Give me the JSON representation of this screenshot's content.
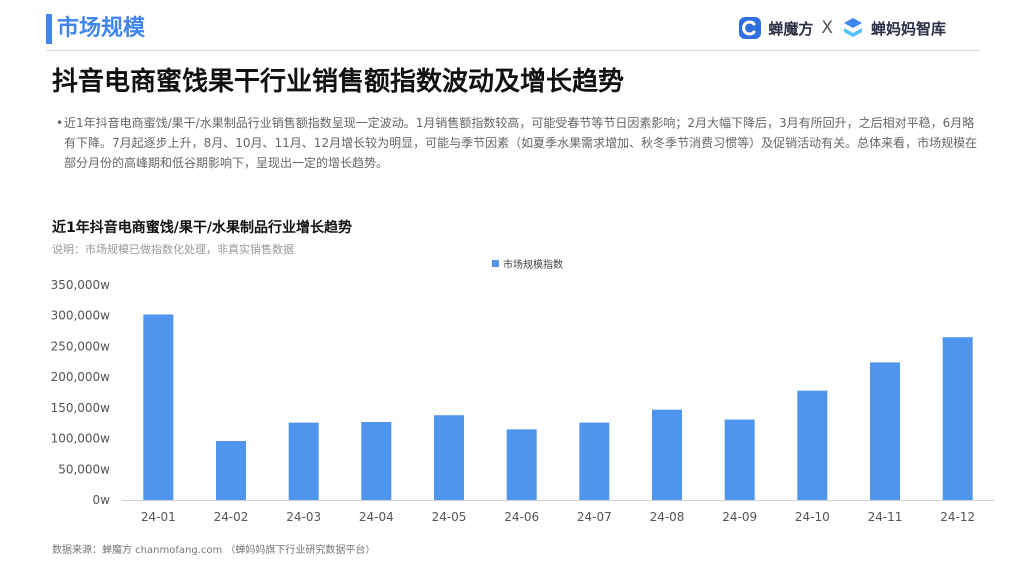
{
  "header": {
    "section_title": "市场规模",
    "brand_1": "蝉魔方",
    "separator": "X",
    "brand_2": "蝉妈妈智库",
    "accent_color": "#3f86f0"
  },
  "main_title": "抖音电商蜜饯果干行业销售额指数波动及增长趋势",
  "description": "近1年抖音电商蜜饯/果干/水果制品行业销售额指数呈现一定波动。1月销售额指数较高，可能受春节等节日因素影响；2月大幅下降后，3月有所回升，之后相对平稳，6月略有下降。7月起逐步上升，8月、10月、11月、12月增长较为明显，可能与季节因素（如夏季水果需求增加、秋冬季节消费习惯等）及促销活动有关。总体来看，市场规模在部分月份的高峰期和低谷期影响下，呈现出一定的增长趋势。",
  "chart_data": {
    "type": "bar",
    "title": "近1年抖音电商蜜饯/果干/水果制品行业增长趋势",
    "subtitle": "说明：市场规模已做指数化处理，非真实销售数据",
    "categories": [
      "24-01",
      "24-02",
      "24-03",
      "24-04",
      "24-05",
      "24-06",
      "24-07",
      "24-08",
      "24-09",
      "24-10",
      "24-11",
      "24-12"
    ],
    "series": [
      {
        "name": "市场规模指数",
        "color": "#4f95ed",
        "values": [
          302000,
          96000,
          126000,
          127000,
          138000,
          115000,
          126000,
          147000,
          131000,
          178000,
          224000,
          265000
        ]
      }
    ],
    "y_ticks": [
      "0w",
      "50,000w",
      "100,000w",
      "150,000w",
      "200,000w",
      "250,000w",
      "300,000w",
      "350,000w"
    ],
    "ylim": [
      0,
      350000
    ],
    "y_tick_step": 50000,
    "grid": false,
    "legend_position": "top-center"
  },
  "source": "数据来源：蝉魔方 chanmofang.com （蝉妈妈旗下行业研究数据平台）"
}
